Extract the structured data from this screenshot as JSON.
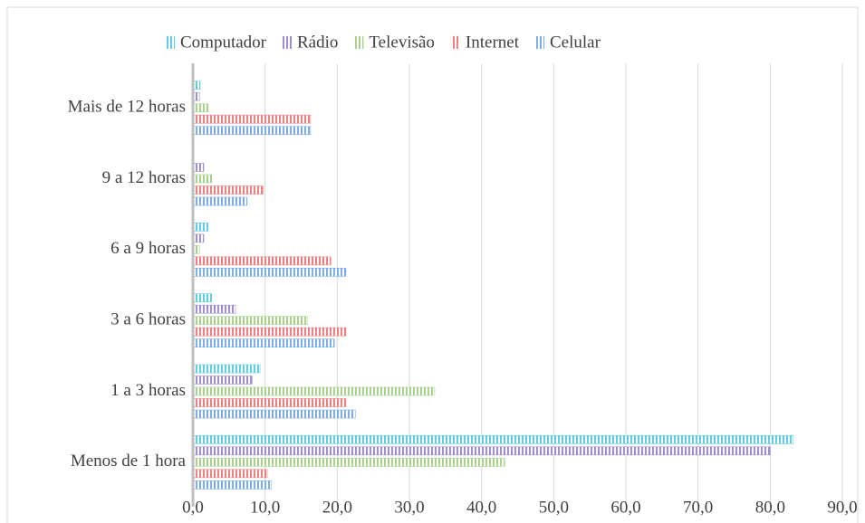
{
  "chart_data": {
    "type": "hbar",
    "categories": [
      "Menos de 1 hora",
      "1 a 3 horas",
      "3 a 6 horas",
      "6 a 9 horas",
      "9 a 12 horas",
      "Mais de 12 horas"
    ],
    "series": [
      {
        "name": "Computador",
        "color": "#5fcde4",
        "values": [
          83.2,
          9.3,
          2.6,
          2.1,
          0,
          1.0
        ]
      },
      {
        "name": "Rádio",
        "color": "#a08fd0",
        "values": [
          80.0,
          8.2,
          5.9,
          1.5,
          1.5,
          0.9
        ]
      },
      {
        "name": "Televisão",
        "color": "#a9d18e",
        "values": [
          43.2,
          33.5,
          15.9,
          0.9,
          2.6,
          2.1
        ]
      },
      {
        "name": "Internet",
        "color": "#f08080",
        "values": [
          10.3,
          21.2,
          21.2,
          19.1,
          9.7,
          16.3
        ]
      },
      {
        "name": "Celular",
        "color": "#7eaee3",
        "values": [
          10.9,
          22.5,
          19.6,
          21.2,
          7.5,
          16.3
        ]
      }
    ],
    "xlim": [
      0,
      90
    ],
    "xticks": [
      {
        "value": 0,
        "label": "0,0"
      },
      {
        "value": 10,
        "label": "10,0"
      },
      {
        "value": 20,
        "label": "20,0"
      },
      {
        "value": 30,
        "label": "30,0"
      },
      {
        "value": 40,
        "label": "40,0"
      },
      {
        "value": 50,
        "label": "50,0"
      },
      {
        "value": 60,
        "label": "60,0"
      },
      {
        "value": 70,
        "label": "70,0"
      },
      {
        "value": 80,
        "label": "80,0"
      },
      {
        "value": 90,
        "label": "90,0"
      }
    ],
    "grid": true,
    "legend": "top"
  }
}
